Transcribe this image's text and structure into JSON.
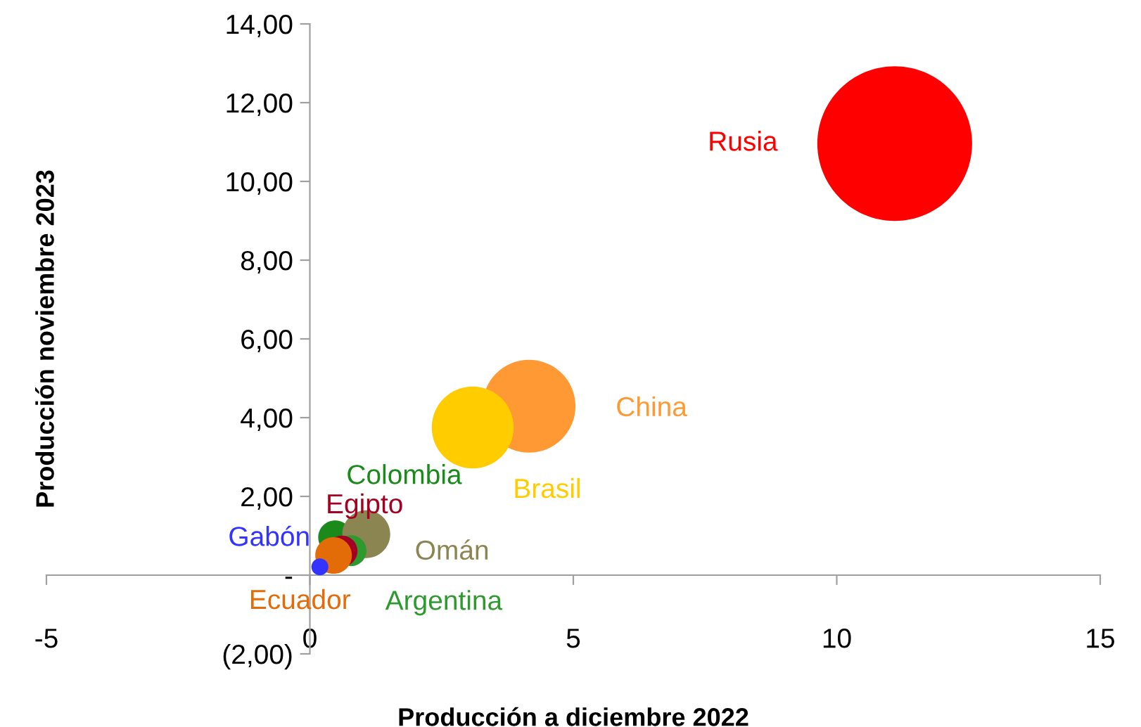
{
  "chart_data": {
    "type": "bubble",
    "xlabel": "Producción a diciembre 2022",
    "ylabel": "Producción noviembre 2023",
    "xlim": [
      -5,
      15
    ],
    "xticks": [
      -5,
      0,
      5,
      10,
      15
    ],
    "ylim": [
      -2,
      14
    ],
    "yticks": [
      {
        "value": -2,
        "label": "(2,00)"
      },
      {
        "value": 0,
        "label": "-"
      },
      {
        "value": 2,
        "label": "2,00"
      },
      {
        "value": 4,
        "label": "4,00"
      },
      {
        "value": 6,
        "label": "6,00"
      },
      {
        "value": 8,
        "label": "8,00"
      },
      {
        "value": 10,
        "label": "10,00"
      },
      {
        "value": 12,
        "label": "12,00"
      },
      {
        "value": 14,
        "label": "14,00"
      }
    ],
    "grid": false,
    "legend": false,
    "series": [
      {
        "name": "Rusia",
        "color": "#ff0000",
        "x": [
          11.1
        ],
        "values": [
          10.96
        ],
        "sizes": [
          1
        ]
      },
      {
        "name": "China",
        "color": "#ff9933",
        "x": [
          4.16
        ],
        "values": [
          4.29
        ],
        "sizes": [
          0.36
        ]
      },
      {
        "name": "Brasil",
        "color": "#ffcc00",
        "x": [
          3.09
        ],
        "values": [
          3.75
        ],
        "sizes": [
          0.28
        ]
      },
      {
        "name": "Colombia",
        "color": "#1a8a1a",
        "x": [
          0.48
        ],
        "values": [
          0.96
        ],
        "sizes": [
          0.048
        ]
      },
      {
        "name": "Omán",
        "color": "#8b8552",
        "x": [
          1.07
        ],
        "values": [
          1.04
        ],
        "sizes": [
          0.096
        ]
      },
      {
        "name": "Argentina",
        "color": "#2e9a2e",
        "x": [
          0.78
        ],
        "values": [
          0.62
        ],
        "sizes": [
          0.04
        ]
      },
      {
        "name": "Egipto",
        "color": "#a50021",
        "x": [
          0.61
        ],
        "values": [
          0.61
        ],
        "sizes": [
          0.04
        ]
      },
      {
        "name": "Ecuador",
        "color": "#e36c09",
        "x": [
          0.45
        ],
        "values": [
          0.5
        ],
        "sizes": [
          0.056
        ]
      },
      {
        "name": "Gabón",
        "color": "#3333ff",
        "x": [
          0.19
        ],
        "values": [
          0.21
        ],
        "sizes": [
          0.012
        ]
      }
    ]
  }
}
